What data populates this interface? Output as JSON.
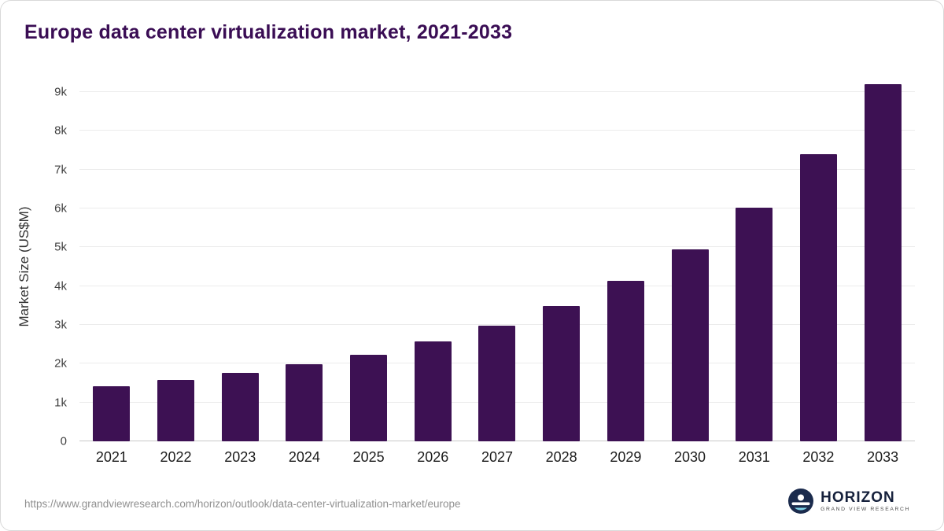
{
  "chart_data": {
    "type": "bar",
    "title": "Europe data center virtualization market, 2021-2033",
    "ylabel": "Market Size (US$M)",
    "xlabel": "",
    "categories": [
      "2021",
      "2022",
      "2023",
      "2024",
      "2025",
      "2026",
      "2027",
      "2028",
      "2029",
      "2030",
      "2031",
      "2032",
      "2033"
    ],
    "values": [
      1420,
      1590,
      1760,
      1980,
      2240,
      2570,
      2980,
      3490,
      4140,
      4950,
      6020,
      7400,
      9200
    ],
    "yticks": [
      {
        "value": 0,
        "label": "0"
      },
      {
        "value": 1000,
        "label": "1k"
      },
      {
        "value": 2000,
        "label": "2k"
      },
      {
        "value": 3000,
        "label": "3k"
      },
      {
        "value": 4000,
        "label": "4k"
      },
      {
        "value": 5000,
        "label": "5k"
      },
      {
        "value": 6000,
        "label": "6k"
      },
      {
        "value": 7000,
        "label": "7k"
      },
      {
        "value": 8000,
        "label": "8k"
      },
      {
        "value": 9000,
        "label": "9k"
      }
    ],
    "ylim": [
      0,
      9000
    ],
    "bar_color": "#3d1153",
    "title_color": "#3a0d54",
    "grid": true,
    "legend": "none"
  },
  "footer": {
    "source_url": "https://www.grandviewresearch.com/horizon/outlook/data-center-virtualization-market/europe",
    "logo": {
      "brand": "HORIZON",
      "subbrand": "GRAND VIEW RESEARCH"
    }
  }
}
